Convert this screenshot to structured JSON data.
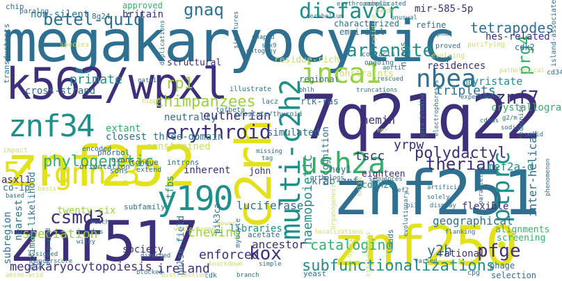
{
  "palette": {
    "navy": "#3e2f7a",
    "indigo": "#44347f",
    "blue": "#2f6f8f",
    "teal": "#1f8f8a",
    "green": "#39ae6a",
    "lime": "#9ad13f",
    "yellow": "#e3e11c",
    "light": "#c7de6b"
  },
  "words": [
    {
      "text": "megakaryocytic",
      "color": "#2f6f8f"
    },
    {
      "text": "k562/wpxl",
      "color": "#3e2f7a"
    },
    {
      "text": "znf252",
      "color": "#e3e11c"
    },
    {
      "text": "7q21q22",
      "color": "#3e2f7a"
    },
    {
      "text": "znf517",
      "color": "#3e2f7a"
    },
    {
      "text": "znf251",
      "color": "#2f6f8f"
    },
    {
      "text": "znf250",
      "color": "#e3e11c"
    },
    {
      "text": "c2rh",
      "color": "#e3e11c"
    },
    {
      "text": "multi-c2h2",
      "color": "#1f8f8a"
    },
    {
      "text": "5'-gnn-3'",
      "color": "#e3e11c"
    },
    {
      "text": "y190",
      "color": "#1f8f8a"
    },
    {
      "text": "znf34",
      "color": "#1f8f8a"
    },
    {
      "text": "inca1",
      "color": "#9ad13f"
    },
    {
      "text": "ush2a",
      "color": "#39ae6a"
    },
    {
      "text": "nbea",
      "color": "#2f6f8f"
    },
    {
      "text": "disfavor",
      "color": "#1f8f8a"
    },
    {
      "text": "ptprc",
      "color": "#1f8f8a"
    },
    {
      "text": "erythroid",
      "color": "#3e2f7a"
    },
    {
      "text": "csmd3",
      "color": "#3e2f7a"
    },
    {
      "text": "arsenate",
      "color": "#1f8f8a"
    },
    {
      "text": "znf7",
      "color": "#3e2f7a"
    },
    {
      "text": "subfunctionalizations",
      "color": "#1f8f8a"
    },
    {
      "text": "megakaryocytopoiesis",
      "color": "#3e2f7a"
    },
    {
      "text": "pfge",
      "color": "#3e2f7a"
    },
    {
      "text": "kox",
      "color": "#3e2f7a"
    },
    {
      "text": "therian",
      "color": "#3e2f7a"
    },
    {
      "text": "polydactyl",
      "color": "#3e2f7a"
    },
    {
      "text": "betel-quid",
      "color": "#2f6f8f"
    },
    {
      "text": "gnaq",
      "color": "#2f6f8f"
    },
    {
      "text": "prg4",
      "color": "#39ae6a"
    },
    {
      "text": "tetrapodes",
      "color": "#2f6f8f"
    },
    {
      "text": "chimpanzees",
      "color": "#9ad13f"
    },
    {
      "text": "rp1",
      "color": "#9ad13f"
    },
    {
      "text": "phylogenetic",
      "color": "#39ae6a"
    },
    {
      "text": "eutherian",
      "color": "#3e2f7a"
    },
    {
      "text": "haemopoietic",
      "color": "#1f8f8a"
    },
    {
      "text": "cataloging",
      "color": "#39ae6a"
    },
    {
      "text": "chewing",
      "color": "#9ad13f"
    },
    {
      "text": "speciation",
      "color": "#9ad13f"
    },
    {
      "text": "enforced",
      "color": "#3e2f7a"
    },
    {
      "text": "triplets",
      "color": "#2f6f8f"
    },
    {
      "text": "y2h",
      "color": "#2f6f8f"
    },
    {
      "text": "ireland",
      "color": "#3e2f7a"
    },
    {
      "text": "primate",
      "color": "#1f8f8a"
    },
    {
      "text": "inter-helical",
      "color": "#2f6f8f"
    },
    {
      "text": "crystallographic",
      "color": "#39ae6a"
    },
    {
      "text": "mef2a-d",
      "color": "#1f8f8a"
    },
    {
      "text": "yrpw",
      "color": "#3e2f7a"
    },
    {
      "text": "tscc",
      "color": "#3e2f7a"
    },
    {
      "text": "hemin",
      "color": "#3e2f7a"
    },
    {
      "text": "luciferase",
      "color": "#2f6f8f"
    },
    {
      "text": "ancestor",
      "color": "#3e2f7a"
    },
    {
      "text": "society",
      "color": "#3e2f7a"
    },
    {
      "text": "twenty-six",
      "color": "#9ad13f"
    },
    {
      "text": "libraries",
      "color": "#1f8f8a"
    },
    {
      "text": "geographical",
      "color": "#2f6f8f"
    },
    {
      "text": "rational",
      "color": "#3e2f7a"
    },
    {
      "text": "flexible",
      "color": "#3e2f7a"
    },
    {
      "text": "myristate",
      "color": "#1f8f8a"
    },
    {
      "text": "residences",
      "color": "#3e2f7a"
    },
    {
      "text": "hes-related",
      "color": "#3e2f7a"
    },
    {
      "text": "mir-585-5p",
      "color": "#3e2f7a"
    },
    {
      "text": "krab-znf",
      "color": "#2f6f8f"
    },
    {
      "text": "neutrally",
      "color": "#2f6f8f"
    },
    {
      "text": "three-domain",
      "color": "#2f6f8f"
    },
    {
      "text": "closest",
      "color": "#2f6f8f"
    },
    {
      "text": "extant",
      "color": "#39ae6a"
    },
    {
      "text": "constrained",
      "color": "#c7de6b"
    },
    {
      "text": "simulated",
      "color": "#2f6f8f"
    },
    {
      "text": "cross-strand",
      "color": "#2f6f8f"
    },
    {
      "text": "non-silent",
      "color": "#2f6f8f"
    },
    {
      "text": "britain",
      "color": "#3e2f7a"
    },
    {
      "text": "approved",
      "color": "#39ae6a"
    },
    {
      "text": "structural",
      "color": "#3e2f7a"
    },
    {
      "text": "tfbs",
      "color": "#1f8f8a"
    },
    {
      "text": "inherent",
      "color": "#3e2f7a"
    },
    {
      "text": "john",
      "color": "#3e2f7a"
    },
    {
      "text": "asxl1",
      "color": "#3e2f7a"
    },
    {
      "text": "co-ip",
      "color": "#2f6f8f"
    },
    {
      "text": "subregion",
      "color": "#2f6f8f"
    },
    {
      "text": "nearest",
      "color": "#2f6f8f"
    },
    {
      "text": "maximum-likelihood",
      "color": "#2f6f8f"
    },
    {
      "text": "pulse-field",
      "color": "#2f6f8f"
    },
    {
      "text": "pik3ca",
      "color": "#2f6f8f"
    },
    {
      "text": "cdkn2a",
      "color": "#1f8f8a"
    },
    {
      "text": "eighteen",
      "color": "#3e2f7a"
    },
    {
      "text": "hey1",
      "color": "#2f6f8f"
    },
    {
      "text": "recognition",
      "color": "#2f6f8f"
    },
    {
      "text": "rtk-ras",
      "color": "#2f6f8f"
    },
    {
      "text": "regional",
      "color": "#2f6f8f"
    },
    {
      "text": "empirical",
      "color": "#2f6f8f"
    },
    {
      "text": "characterized",
      "color": "#2f6f8f"
    },
    {
      "text": "refine",
      "color": "#2f6f8f"
    },
    {
      "text": "nspcs",
      "color": "#2f6f8f"
    },
    {
      "text": "cdk2",
      "color": "#2f6f8f"
    },
    {
      "text": "alignments",
      "color": "#39ae6a"
    },
    {
      "text": "screening",
      "color": "#39ae6a"
    },
    {
      "text": "phage",
      "color": "#2f6f8f"
    },
    {
      "text": "selection",
      "color": "#2f6f8f"
    },
    {
      "text": "subfamily",
      "color": "#2f6f8f"
    },
    {
      "text": "residue-rich",
      "color": "#c7de6b"
    },
    {
      "text": "constraints",
      "color": "#c7de6b"
    },
    {
      "text": "mads",
      "color": "#2f6f8f"
    },
    {
      "text": "acetate",
      "color": "#2f6f8f"
    },
    {
      "text": "myocyte",
      "color": "#2f6f8f"
    },
    {
      "text": "yeast",
      "color": "#2f6f8f"
    },
    {
      "text": "cdk",
      "color": "#2f6f8f"
    },
    {
      "text": "cpg",
      "color": "#2f6f8f"
    },
    {
      "text": "sons",
      "color": "#2f6f8f"
    },
    {
      "text": "exons",
      "color": "#2f6f8f"
    },
    {
      "text": "introns",
      "color": "#2f6f8f"
    },
    {
      "text": "tongue",
      "color": "#2f6f8f"
    },
    {
      "text": "extend",
      "color": "#2f6f8f"
    },
    {
      "text": "phorbol",
      "color": "#2f6f8f"
    },
    {
      "text": "encoded",
      "color": "#2f6f8f"
    },
    {
      "text": "orientation",
      "color": "#2f6f8f"
    },
    {
      "text": "impact",
      "color": "#c7de6b"
    },
    {
      "text": "paralog",
      "color": "#2f6f8f"
    },
    {
      "text": "chip",
      "color": "#2f6f8f"
    },
    {
      "text": "transductants",
      "color": "#2f6f8f"
    },
    {
      "text": "8q24",
      "color": "#2f6f8f"
    },
    {
      "text": "species",
      "color": "#c7de6b"
    },
    {
      "text": "erythropoiesis",
      "color": "#2f6f8f"
    },
    {
      "text": "complicated",
      "color": "#2f6f8f"
    },
    {
      "text": "bands",
      "color": "#c7de6b"
    },
    {
      "text": "unusual",
      "color": "#2f6f8f"
    },
    {
      "text": "pma",
      "color": "#2f6f8f"
    },
    {
      "text": "contacts",
      "color": "#2f6f8f"
    },
    {
      "text": "ongoing",
      "color": "#2f6f8f"
    },
    {
      "text": "proved",
      "color": "#2f6f8f"
    },
    {
      "text": "evolving",
      "color": "#c7de6b"
    },
    {
      "text": "purifying",
      "color": "#c7de6b"
    },
    {
      "text": "island-associated",
      "color": "#2f6f8f"
    },
    {
      "text": "pathological",
      "color": "#c7de6b"
    },
    {
      "text": "cd34",
      "color": "#2f6f8f"
    },
    {
      "text": "shaped",
      "color": "#2f6f8f"
    },
    {
      "text": "sox9",
      "color": "#2f6f8f"
    },
    {
      "text": "ontogeny",
      "color": "#2f6f8f"
    },
    {
      "text": "bhlh",
      "color": "#2f6f8f"
    },
    {
      "text": "illustrate",
      "color": "#2f6f8f"
    },
    {
      "text": "lacz",
      "color": "#2f6f8f"
    },
    {
      "text": "prostate/thyroid",
      "color": "#2f6f8f"
    },
    {
      "text": "tgfbeta",
      "color": "#2f6f8f"
    },
    {
      "text": "hippo",
      "color": "#c7de6b"
    },
    {
      "text": "gata1",
      "color": "#2f6f8f"
    },
    {
      "text": "duplications",
      "color": "#2f6f8f"
    },
    {
      "text": "signatures",
      "color": "#2f6f8f"
    },
    {
      "text": "cerebellum",
      "color": "#2f6f8f"
    },
    {
      "text": "cytidine",
      "color": "#c7de6b"
    },
    {
      "text": "aortic",
      "color": "#2f6f8f"
    },
    {
      "text": "rescued",
      "color": "#2f6f8f"
    },
    {
      "text": "truncations",
      "color": "#2f6f8f"
    },
    {
      "text": "experiments",
      "color": "#2f6f8f"
    },
    {
      "text": "g2/m",
      "color": "#2f6f8f"
    },
    {
      "text": "sodium",
      "color": "#2f6f8f"
    },
    {
      "text": "recognize",
      "color": "#2f6f8f"
    },
    {
      "text": "solid",
      "color": "#2f6f8f"
    },
    {
      "text": "cdnas",
      "color": "#2f6f8f"
    },
    {
      "text": "missing",
      "color": "#2f6f8f"
    },
    {
      "text": "tag",
      "color": "#2f6f8f"
    },
    {
      "text": "nmr",
      "color": "#c7de6b"
    },
    {
      "text": "electrophoresis",
      "color": "#2f6f8f"
    },
    {
      "text": "gata-binding",
      "color": "#2f6f8f"
    },
    {
      "text": "phenomenon",
      "color": "#2f6f8f"
    },
    {
      "text": "orthologs",
      "color": "#2f6f8f"
    },
    {
      "text": "helix",
      "color": "#c7de6b"
    },
    {
      "text": "sequences",
      "color": "#2f6f8f"
    },
    {
      "text": "mef2",
      "color": "#2f6f8f"
    },
    {
      "text": "artificial",
      "color": "#2f6f8f"
    },
    {
      "text": "solely",
      "color": "#2f6f8f"
    },
    {
      "text": "display",
      "color": "#2f6f8f"
    },
    {
      "text": "paralleled",
      "color": "#2f6f8f"
    },
    {
      "text": "pi3k",
      "color": "#2f6f8f"
    },
    {
      "text": "organogenesis",
      "color": "#c7de6b"
    },
    {
      "text": "evolutionary",
      "color": "#2f6f8f"
    },
    {
      "text": "localizations",
      "color": "#c7de6b"
    },
    {
      "text": "flanking",
      "color": "#2f6f8f"
    },
    {
      "text": "varied",
      "color": "#2f6f8f"
    },
    {
      "text": "two-hybrid",
      "color": "#c7de6b"
    },
    {
      "text": "similarities",
      "color": "#c7de6b"
    },
    {
      "text": "power",
      "color": "#c7de6b"
    },
    {
      "text": "knockdown",
      "color": "#c7de6b"
    },
    {
      "text": "distribution",
      "color": "#c7de6b"
    },
    {
      "text": "branch",
      "color": "#2f6f8f"
    },
    {
      "text": "simple",
      "color": "#2f6f8f"
    },
    {
      "text": "blocked",
      "color": "#2f6f8f"
    },
    {
      "text": "diverged",
      "color": "#2f6f8f"
    },
    {
      "text": "whole-exome",
      "color": "#c7de6b"
    },
    {
      "text": "notch",
      "color": "#2f6f8f"
    },
    {
      "text": "cycles",
      "color": "#2f6f8f"
    },
    {
      "text": "wiley",
      "color": "#2f6f8f"
    },
    {
      "text": "basis",
      "color": "#c7de6b"
    },
    {
      "text": "based",
      "color": "#2f6f8f"
    },
    {
      "text": "designated",
      "color": "#2f6f8f"
    },
    {
      "text": "assigned",
      "color": "#2f6f8f"
    },
    {
      "text": "underscore",
      "color": "#2f6f8f"
    },
    {
      "text": "amino-acid",
      "color": "#c7de6b"
    },
    {
      "text": "a1",
      "color": "#2f6f8f"
    }
  ]
}
